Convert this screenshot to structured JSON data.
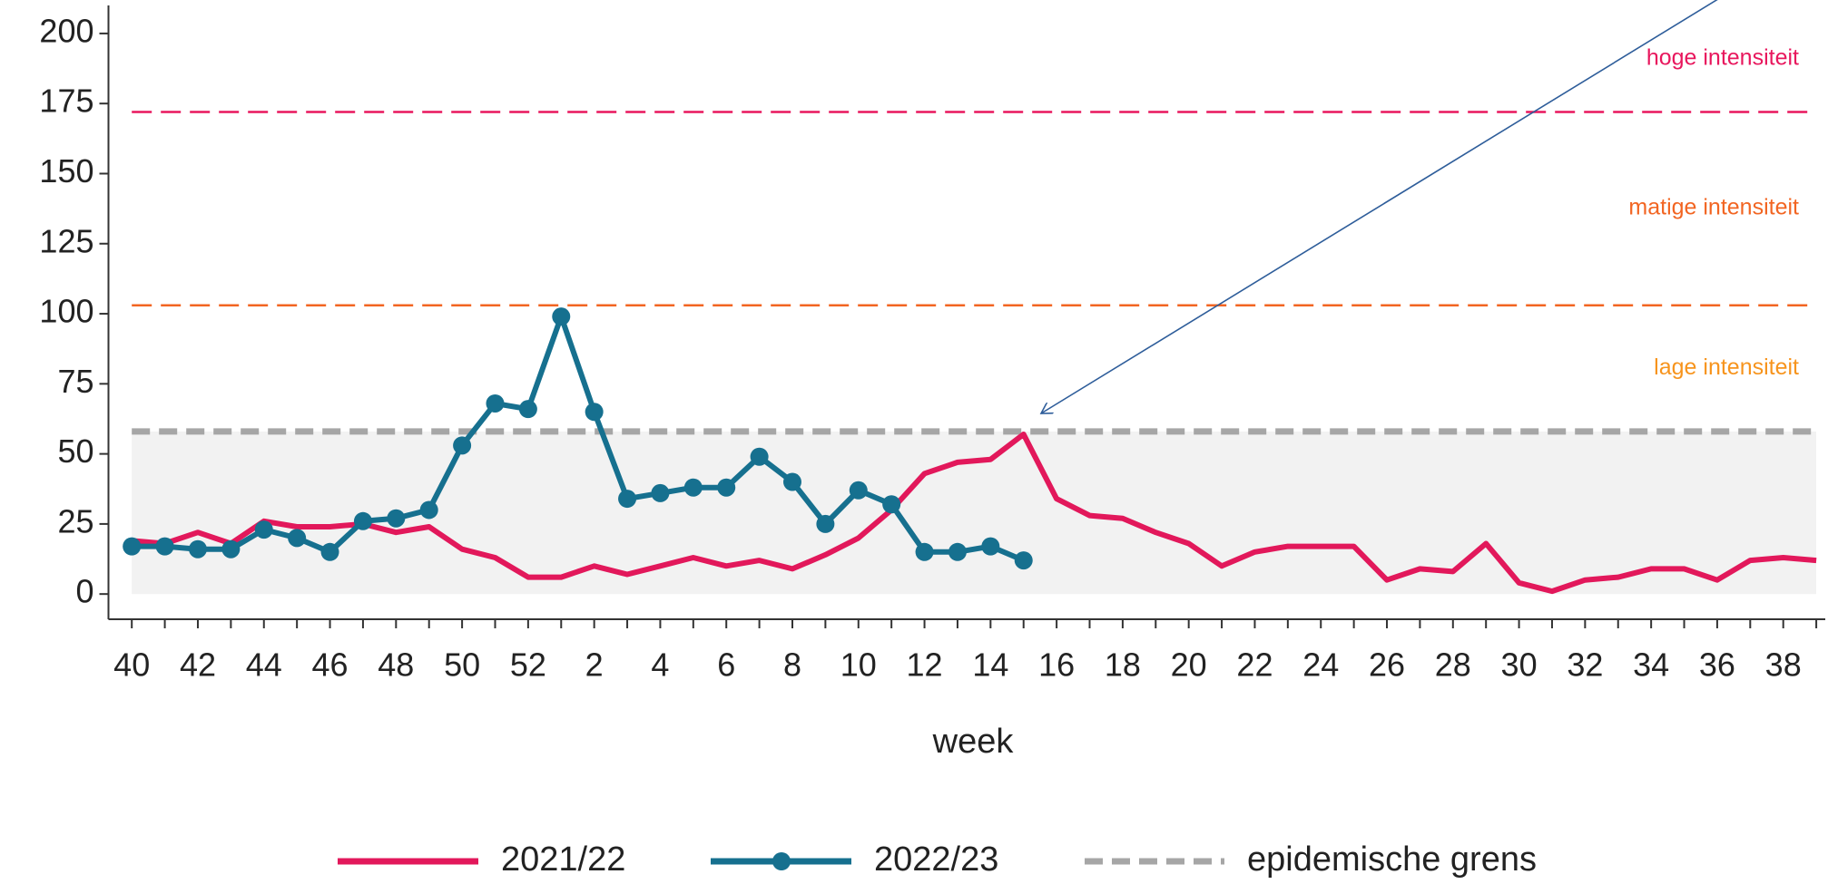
{
  "chart_data": {
    "type": "line",
    "x_label": "week",
    "categories": [
      40,
      null,
      42,
      null,
      44,
      null,
      46,
      null,
      48,
      null,
      50,
      null,
      52,
      null,
      2,
      null,
      4,
      null,
      6,
      null,
      8,
      null,
      10,
      null,
      12,
      null,
      14,
      null,
      16,
      null,
      18,
      null,
      20,
      null,
      22,
      null,
      24,
      null,
      26,
      null,
      28,
      null,
      30,
      null,
      32,
      null,
      34,
      null,
      36,
      null,
      38,
      null
    ],
    "series": [
      {
        "name": "2021/22",
        "color": "#e2185b",
        "markers": false,
        "values": [
          19,
          18,
          22,
          18,
          26,
          24,
          24,
          25,
          22,
          24,
          16,
          13,
          6,
          6,
          10,
          7,
          10,
          13,
          10,
          12,
          9,
          14,
          20,
          30,
          43,
          47,
          48,
          57,
          34,
          28,
          27,
          22,
          18,
          10,
          15,
          17,
          17,
          17,
          5,
          9,
          8,
          18,
          4,
          1,
          5,
          6,
          9,
          9,
          5,
          12,
          13,
          12
        ]
      },
      {
        "name": "2022/23",
        "color": "#16708f",
        "markers": true,
        "values": [
          17,
          17,
          16,
          16,
          23,
          20,
          15,
          26,
          27,
          30,
          53,
          68,
          66,
          99,
          65,
          34,
          36,
          38,
          38,
          49,
          40,
          25,
          37,
          32,
          15,
          15,
          17,
          12,
          null,
          null,
          null,
          null,
          null,
          null,
          null,
          null,
          null,
          null,
          null,
          null,
          null,
          null,
          null,
          null,
          null,
          null,
          null,
          null,
          null,
          null,
          null,
          null
        ]
      }
    ],
    "thresholds": [
      {
        "name": "epidemische grens",
        "value": 58,
        "color": "#a6a6a6"
      },
      {
        "value": 103,
        "color": "#f26522"
      },
      {
        "value": 172,
        "color": "#e8175d"
      }
    ],
    "zone_labels": [
      {
        "label": "lage intensiteit",
        "color": "#f7941d"
      },
      {
        "label": "matige intensiteit",
        "color": "#f26522"
      },
      {
        "label": "hoge intensiteit",
        "color": "#e8175d"
      }
    ],
    "ylim": [
      -9,
      210
    ],
    "yticks": [
      0,
      25,
      50,
      75,
      100,
      125,
      150,
      175,
      200
    ]
  }
}
